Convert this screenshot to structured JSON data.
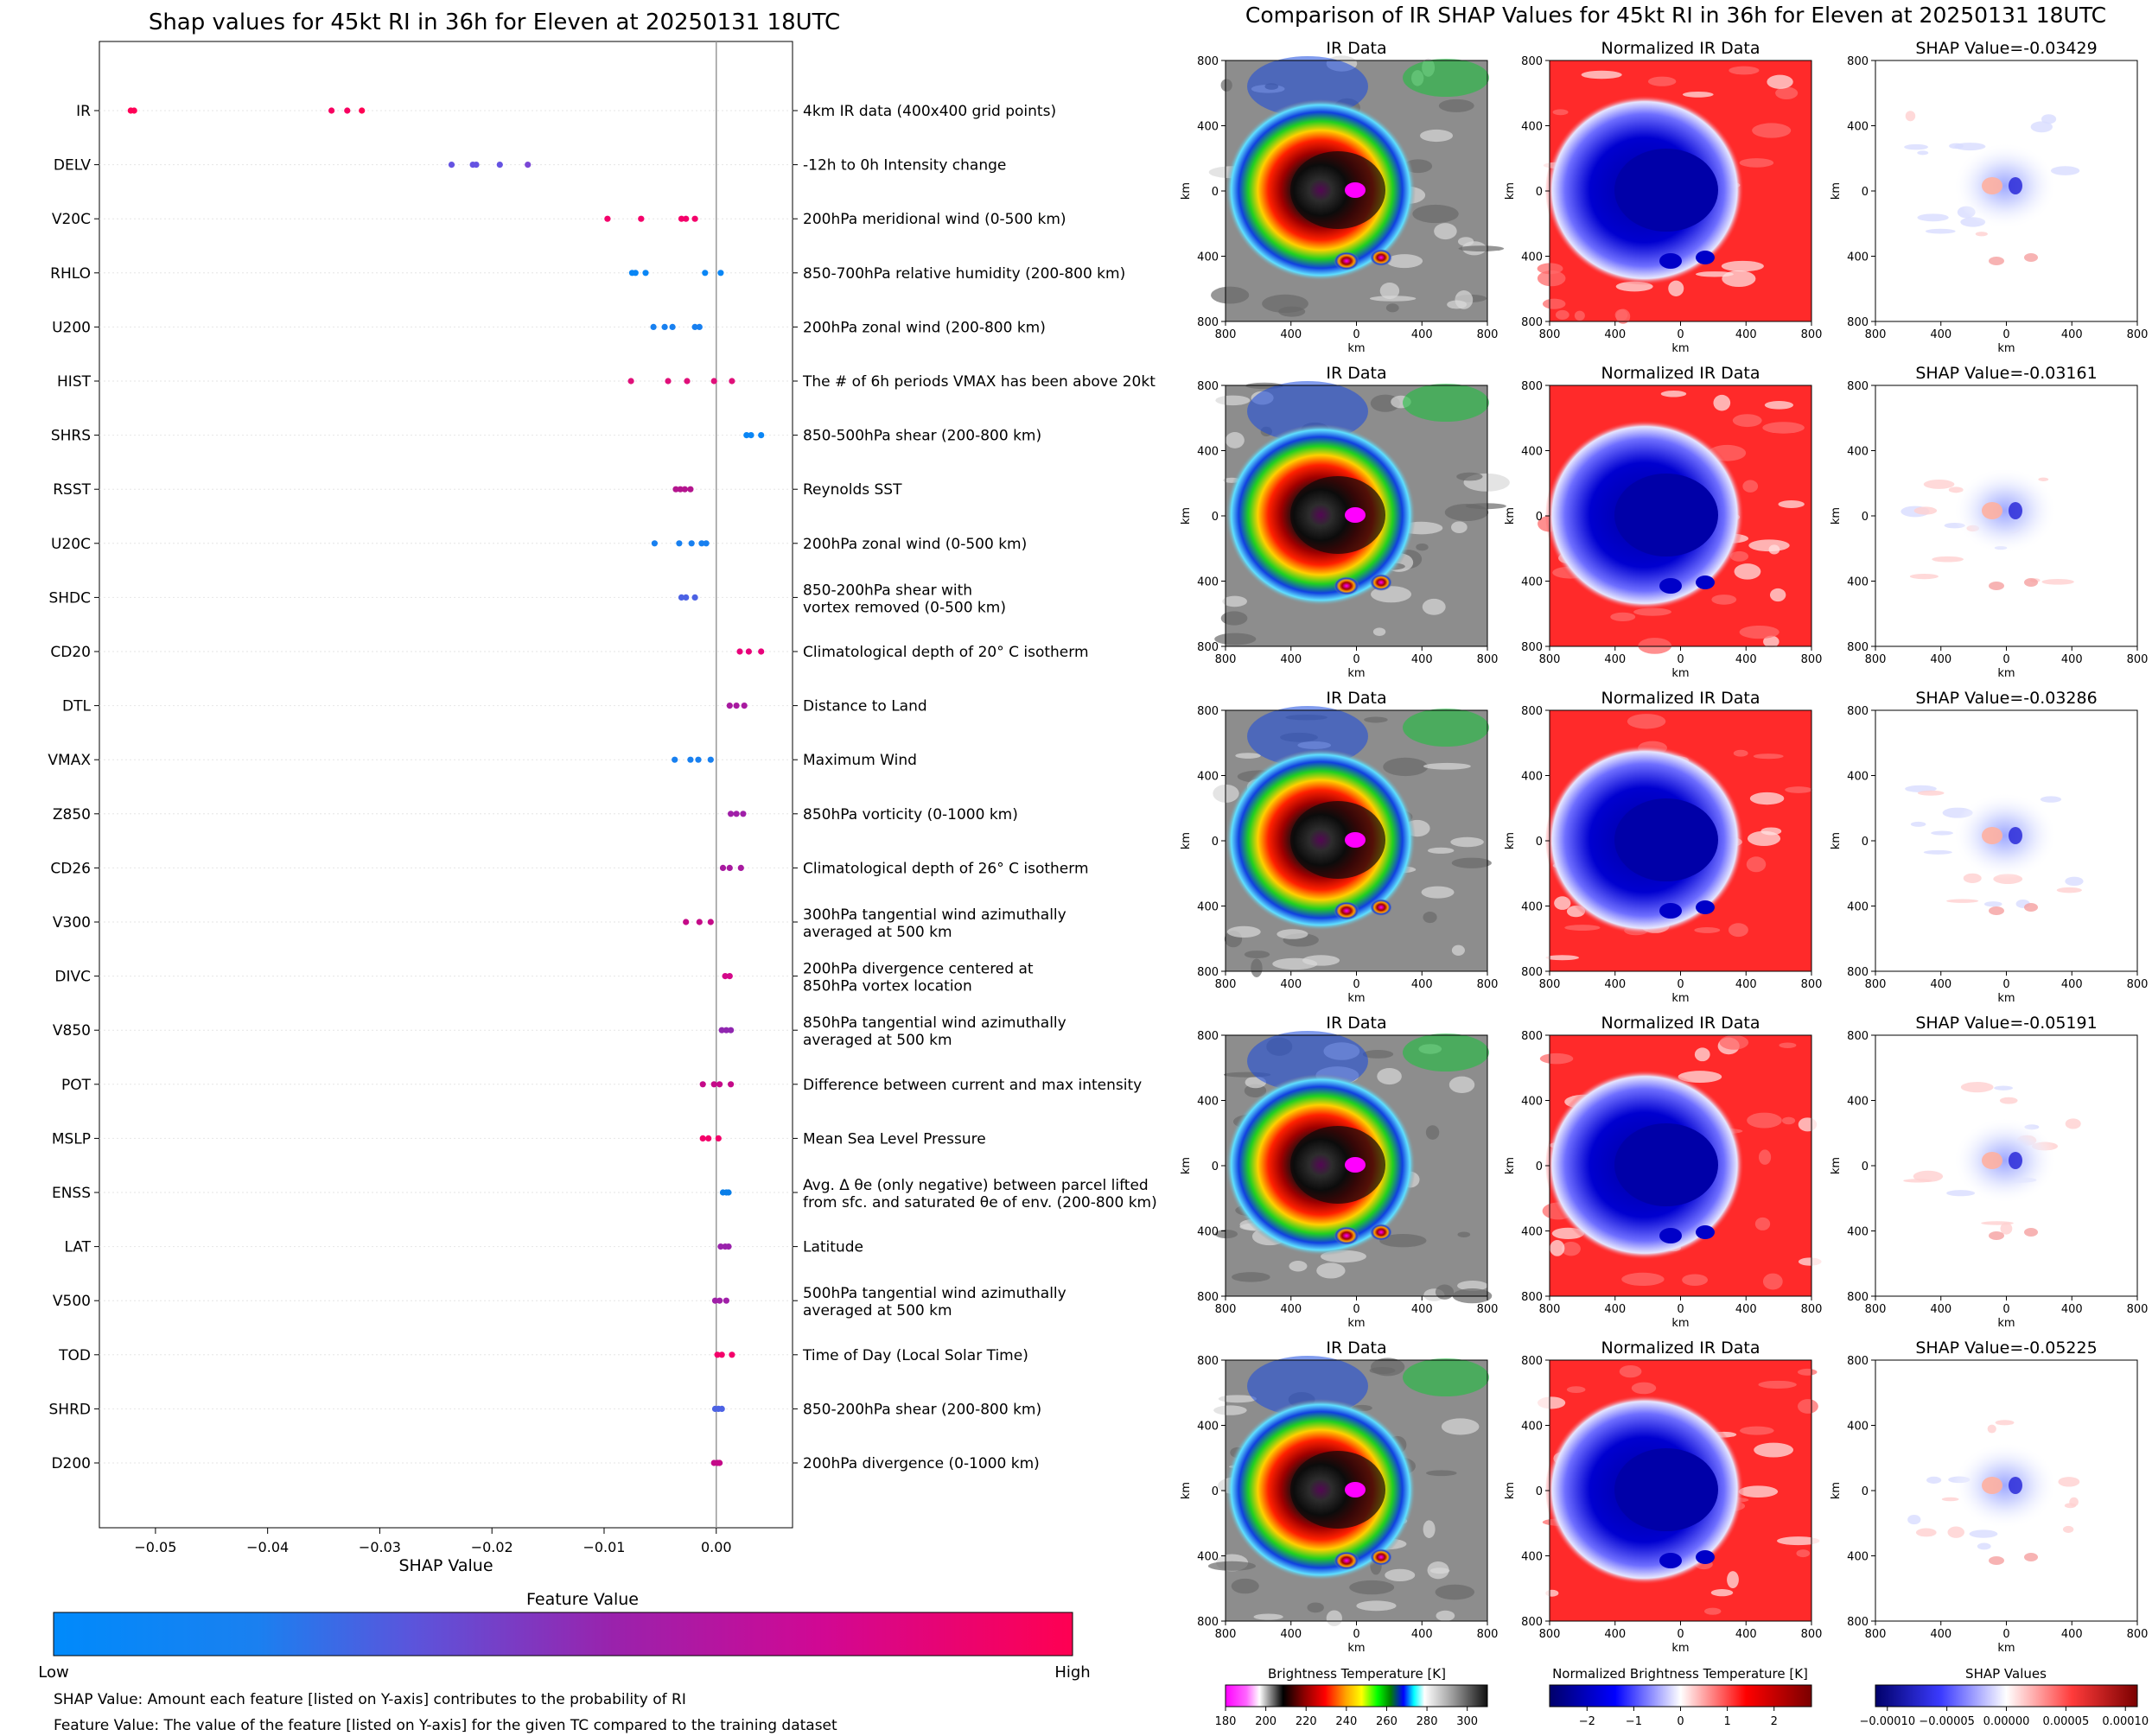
{
  "colors": {
    "low": "#008afb",
    "mid": "#7c3fd0",
    "high": "#ff0052",
    "ir_scale": [
      "#ff00ff",
      "#c8c8c8",
      "#000000",
      "#800000",
      "#ff0000",
      "#ffa500",
      "#ffff00",
      "#00ff00",
      "#008000",
      "#0000ff",
      "#00ffff",
      "#ffffff",
      "#9a9a9a",
      "#202020"
    ],
    "norm_scale": [
      "#00008b",
      "#0000ff",
      "#ffffff",
      "#ff0000",
      "#8b0000"
    ]
  },
  "chart_data": [
    {
      "type": "scatter",
      "title": "Shap values for 45kt RI in 36h for Eleven at 20250131 18UTC",
      "xlabel": "SHAP Value",
      "xlim": [
        -0.055,
        0.0068
      ],
      "x_ticks": [
        "−0.05",
        "−0.04",
        "−0.03",
        "−0.02",
        "−0.01",
        "0.00"
      ],
      "x_tick_values": [
        -0.05,
        -0.04,
        -0.03,
        -0.02,
        -0.01,
        0.0
      ],
      "colorbar": {
        "title": "Feature Value",
        "low_label": "Low",
        "high_label": "High"
      },
      "features": [
        {
          "name": "IR",
          "desc": "4km IR data (400x400 grid points)",
          "values": [
            -0.0522,
            -0.0519,
            -0.0343,
            -0.0329,
            -0.0316
          ],
          "colors": [
            "#ff0056",
            "#ff0056",
            "#f70060",
            "#f70060",
            "#ff0052"
          ]
        },
        {
          "name": "DELV",
          "desc": "-12h to 0h Intensity change",
          "values": [
            -0.0236,
            -0.0217,
            -0.0214,
            -0.0193,
            -0.0168
          ],
          "colors": [
            "#6553e2",
            "#6553e2",
            "#6553e2",
            "#6553e2",
            "#7a47d6"
          ]
        },
        {
          "name": "V20C",
          "desc": "200hPa meridional wind (0-500 km)",
          "values": [
            -0.0097,
            -0.0067,
            -0.0031,
            -0.0027,
            -0.0019
          ],
          "colors": [
            "#f4006a",
            "#f4006a",
            "#f4006a",
            "#f4006a",
            "#f4006a"
          ]
        },
        {
          "name": "RHLO",
          "desc": "850-700hPa relative humidity (200-800 km)",
          "values": [
            -0.0075,
            -0.0072,
            -0.0063,
            -0.001,
            0.0004
          ],
          "colors": [
            "#0a86f5",
            "#0a86f5",
            "#0a86f5",
            "#0a86f5",
            "#0a86f5"
          ]
        },
        {
          "name": "U200",
          "desc": "200hPa zonal wind (200-800 km)",
          "values": [
            -0.0056,
            -0.0046,
            -0.0039,
            -0.0019,
            -0.0015
          ],
          "colors": [
            "#1880f0",
            "#1880f0",
            "#1880f0",
            "#1880f0",
            "#1880f0"
          ]
        },
        {
          "name": "HIST",
          "desc": "The # of 6h periods VMAX has been above 20kt",
          "values": [
            -0.0076,
            -0.0043,
            -0.0026,
            -0.0002,
            0.0014
          ],
          "colors": [
            "#e0107a",
            "#e0107a",
            "#e0107a",
            "#e0107a",
            "#e0107a"
          ]
        },
        {
          "name": "SHRS",
          "desc": "850-500hPa shear (200-800 km)",
          "values": [
            0.0027,
            0.0031,
            0.004
          ],
          "colors": [
            "#0a86f5",
            "#0a86f5",
            "#0a86f5"
          ]
        },
        {
          "name": "RSST",
          "desc": "Reynolds SST",
          "values": [
            -0.0036,
            -0.0032,
            -0.0028,
            -0.0023
          ],
          "colors": [
            "#b4158e",
            "#b4158e",
            "#b4158e",
            "#b4158e"
          ]
        },
        {
          "name": "U20C",
          "desc": "200hPa zonal wind (0-500 km)",
          "values": [
            -0.0055,
            -0.0033,
            -0.0022,
            -0.0013,
            -0.0009
          ],
          "colors": [
            "#1880f0",
            "#1880f0",
            "#1880f0",
            "#1880f0",
            "#1880f0"
          ]
        },
        {
          "name": "SHDC",
          "desc": "850-200hPa shear with\nvortex removed (0-500 km)",
          "values": [
            -0.0031,
            -0.0027,
            -0.0019
          ],
          "colors": [
            "#4c62e4",
            "#4c62e4",
            "#4c62e4"
          ]
        },
        {
          "name": "CD20",
          "desc": "Climatological depth of 20° C isotherm",
          "values": [
            0.0021,
            0.0029,
            0.004
          ],
          "colors": [
            "#e8007a",
            "#e8007a",
            "#e8007a"
          ]
        },
        {
          "name": "DTL",
          "desc": "Distance to Land",
          "values": [
            0.0012,
            0.0018,
            0.0025
          ],
          "colors": [
            "#a81aa0",
            "#a81aa0",
            "#a81aa0"
          ]
        },
        {
          "name": "VMAX",
          "desc": "Maximum Wind",
          "values": [
            -0.0037,
            -0.0023,
            -0.0016,
            -0.0005
          ],
          "colors": [
            "#1880f0",
            "#1880f0",
            "#1880f0",
            "#1880f0"
          ]
        },
        {
          "name": "Z850",
          "desc": "850hPa vorticity (0-1000 km)",
          "values": [
            0.0013,
            0.0018,
            0.0024
          ],
          "colors": [
            "#a01fa8",
            "#a01fa8",
            "#a01fa8"
          ]
        },
        {
          "name": "CD26",
          "desc": "Climatological depth of 26° C isotherm",
          "values": [
            0.0006,
            0.0012,
            0.0022
          ],
          "colors": [
            "#a81aa0",
            "#a81aa0",
            "#a81aa0"
          ]
        },
        {
          "name": "V300",
          "desc": "300hPa tangential wind azimuthally\naveraged at 500 km",
          "values": [
            -0.0027,
            -0.0015,
            -0.0005
          ],
          "colors": [
            "#c40a88",
            "#c40a88",
            "#c40a88"
          ]
        },
        {
          "name": "DIVC",
          "desc": "200hPa divergence centered at\n850hPa vortex location",
          "values": [
            0.0008,
            0.0012
          ],
          "colors": [
            "#d4088a",
            "#d4088a"
          ]
        },
        {
          "name": "V850",
          "desc": "850hPa tangential wind azimuthally\naveraged at 500 km",
          "values": [
            0.0005,
            0.0009,
            0.0013
          ],
          "colors": [
            "#9026b0",
            "#9026b0",
            "#9026b0"
          ]
        },
        {
          "name": "POT",
          "desc": "Difference between current and max intensity",
          "values": [
            -0.0012,
            -0.0002,
            0.0003,
            0.0013
          ],
          "colors": [
            "#c40a88",
            "#c40a88",
            "#c40a88",
            "#c40a88"
          ]
        },
        {
          "name": "MSLP",
          "desc": "Mean Sea Level Pressure",
          "values": [
            -0.0012,
            -0.0007,
            0.0002
          ],
          "colors": [
            "#f4006a",
            "#f4006a",
            "#f4006a"
          ]
        },
        {
          "name": "ENSS",
          "desc": "Avg. Δ θe (only negative) between parcel lifted\nfrom sfc. and saturated θe of env. (200-800 km)",
          "values": [
            0.0006,
            0.0009,
            0.0011
          ],
          "colors": [
            "#0a7ee8",
            "#0a7ee8",
            "#0a7ee8"
          ]
        },
        {
          "name": "LAT",
          "desc": "Latitude",
          "values": [
            0.0004,
            0.0008,
            0.0011
          ],
          "colors": [
            "#9a22ac",
            "#9a22ac",
            "#9a22ac"
          ]
        },
        {
          "name": "V500",
          "desc": "500hPa tangential wind azimuthally\naveraged at 500 km",
          "values": [
            -0.0001,
            0.0003,
            0.0009
          ],
          "colors": [
            "#a01fa8",
            "#a01fa8",
            "#a01fa8"
          ]
        },
        {
          "name": "TOD",
          "desc": "Time of Day (Local Solar Time)",
          "values": [
            0.0001,
            0.0005,
            0.0014
          ],
          "colors": [
            "#f4006a",
            "#f4006a",
            "#f4006a"
          ]
        },
        {
          "name": "SHRD",
          "desc": "850-200hPa shear (200-800 km)",
          "values": [
            -0.0001,
            0.0002,
            0.0005
          ],
          "colors": [
            "#4c62e4",
            "#4c62e4",
            "#4c62e4"
          ]
        },
        {
          "name": "D200",
          "desc": "200hPa divergence (0-1000 km)",
          "values": [
            -0.0002,
            0.0001,
            0.0003
          ],
          "colors": [
            "#c40a88",
            "#c40a88",
            "#c40a88"
          ]
        }
      ]
    },
    {
      "type": "heatmap",
      "title": "Comparison of IR SHAP Values for 45kt RI in 36h for Eleven at 20250131 18UTC",
      "panel_titles": [
        "IR Data",
        "Normalized IR Data"
      ],
      "shap_titles": [
        "SHAP Value=-0.03429",
        "SHAP Value=-0.03161",
        "SHAP Value=-0.03286",
        "SHAP Value=-0.05191",
        "SHAP Value=-0.05225"
      ],
      "axis_label": "km",
      "axis_ticks": [
        "800",
        "400",
        "0",
        "400",
        "800"
      ],
      "colorbars": [
        {
          "label": "Brightness Temperature [K]",
          "ticks": [
            "180",
            "200",
            "220",
            "240",
            "260",
            "280",
            "300"
          ],
          "range": [
            180,
            310
          ]
        },
        {
          "label": "Normalized Brightness Temperature [K]",
          "ticks": [
            "−2",
            "−1",
            "0",
            "1",
            "2"
          ],
          "range": [
            -2.8,
            2.8
          ]
        },
        {
          "label": "SHAP Values",
          "ticks": [
            "−0.00010",
            "−0.00005",
            "0.00000",
            "0.00005",
            "0.00010"
          ],
          "range": [
            -0.00011,
            0.00011
          ]
        }
      ]
    }
  ],
  "footer": {
    "line1": "SHAP Value: Amount each feature [listed on Y-axis] contributes to the probability of RI",
    "line2": "Feature Value: The value of the feature [listed on Y-axis] for the given TC compared to the training dataset"
  }
}
